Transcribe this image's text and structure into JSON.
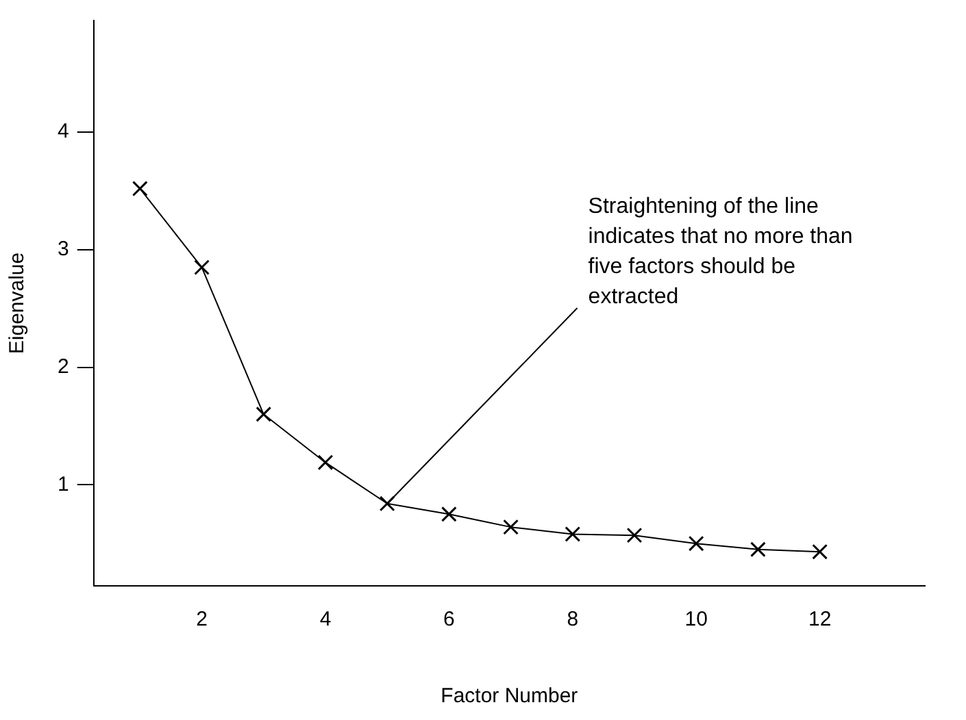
{
  "chart_data": {
    "type": "line",
    "xlabel": "Factor Number",
    "ylabel": "Eigenvalue",
    "x": [
      1,
      2,
      3,
      4,
      5,
      6,
      7,
      8,
      9,
      10,
      11,
      12
    ],
    "values": [
      3.52,
      2.85,
      1.6,
      1.19,
      0.84,
      0.75,
      0.64,
      0.58,
      0.57,
      0.5,
      0.45,
      0.43
    ],
    "color": "#000000",
    "marker": "cross",
    "line_style": "solid",
    "grid": false,
    "legend": false,
    "xlim": [
      0.25,
      13.7
    ],
    "xticks": [
      2,
      4,
      6,
      8,
      10,
      12
    ],
    "ylim": [
      0.14,
      4.95
    ],
    "yticks": [
      1,
      2,
      3,
      4
    ],
    "annotations": [
      {
        "text": "Straightening of the line indicates that no more than five factors should be extracted",
        "x": 5,
        "y": 0.84
      }
    ]
  }
}
